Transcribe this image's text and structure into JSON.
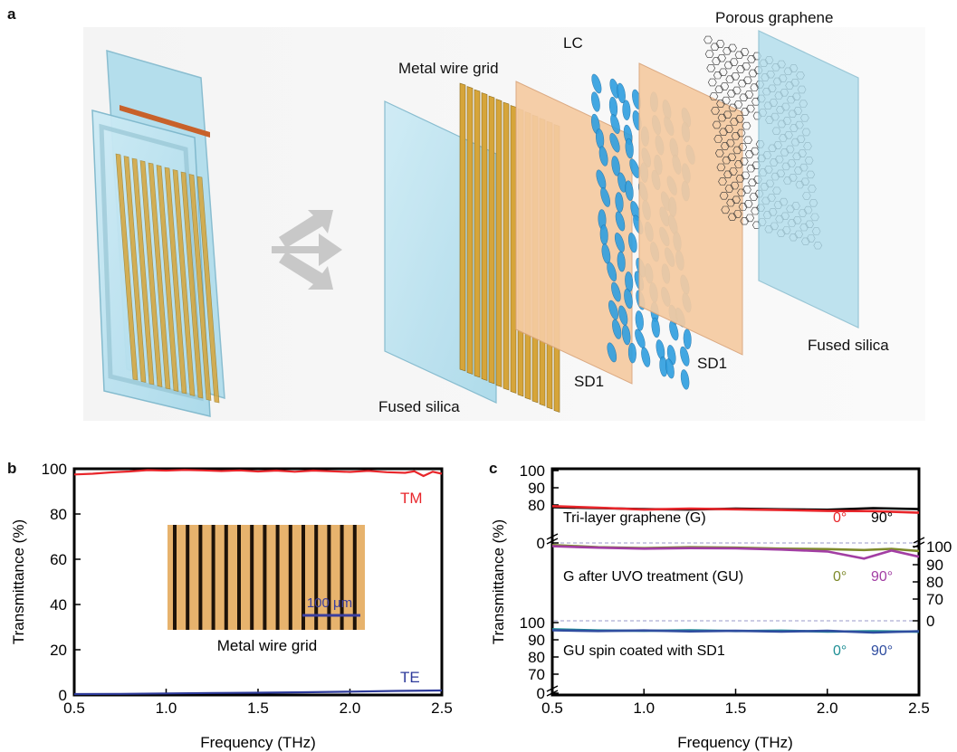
{
  "figure": {
    "panel_a": {
      "letter": "a",
      "labels": {
        "porous_graphene": "Porous graphene",
        "lc": "LC",
        "metal_wire_grid": "Metal wire grid",
        "fused_silica_left": "Fused silica",
        "fused_silica_right": "Fused silica",
        "sd1_left": "SD1",
        "sd1_right": "SD1"
      }
    },
    "panel_b": {
      "letter": "b",
      "inset_caption": "Metal wire grid",
      "scale_bar_label": "100 μm"
    },
    "panel_c": {
      "letter": "c",
      "annotations": {
        "row1_label": "Tri-layer graphene (G)",
        "row1_angle0": "0°",
        "row1_angle90": "90°",
        "row2_label": "G after UVO treatment (GU)",
        "row2_angle0": "0°",
        "row2_angle90": "90°",
        "row3_label": "GU spin coated with SD1",
        "row3_angle0": "0°",
        "row3_angle90": "90°"
      }
    },
    "colors": {
      "tm": "#e8262b",
      "te": "#2e3b9b",
      "g0": "#e8262b",
      "g90": "#000000",
      "gu0": "#7e8a2b",
      "gu90": "#a23ea3",
      "sd0": "#1f8f95",
      "sd90": "#2f4da0",
      "glass": "#b9e2ef",
      "wire": "#d6a53a",
      "sd1": "#f4c9a0",
      "lc": "#2f9fe0"
    }
  },
  "chart_data": [
    {
      "type": "line",
      "panel": "b",
      "xlabel": "Frequency (THz)",
      "ylabel": "Transmittance (%)",
      "xlim": [
        0.5,
        2.5
      ],
      "ylim": [
        0,
        100
      ],
      "xticks": [
        0.5,
        1.0,
        1.5,
        2.0,
        2.5
      ],
      "yticks": [
        0,
        20,
        40,
        60,
        80,
        100
      ],
      "series": [
        {
          "name": "TM",
          "x": [
            0.5,
            0.6,
            0.7,
            0.8,
            0.9,
            1.0,
            1.1,
            1.2,
            1.3,
            1.4,
            1.5,
            1.6,
            1.7,
            1.8,
            1.9,
            2.0,
            2.1,
            2.2,
            2.3,
            2.35,
            2.4,
            2.45,
            2.5
          ],
          "y": [
            97.5,
            97.8,
            98.4,
            98.8,
            99.4,
            99.2,
            99.5,
            99.3,
            99.0,
            99.3,
            98.8,
            99.2,
            98.7,
            99.2,
            98.9,
            98.6,
            99.1,
            98.5,
            98.2,
            98.9,
            96.8,
            98.7,
            97.8
          ]
        },
        {
          "name": "TE",
          "x": [
            0.5,
            0.75,
            1.0,
            1.25,
            1.5,
            1.75,
            2.0,
            2.25,
            2.5
          ],
          "y": [
            0.4,
            0.5,
            0.7,
            0.9,
            1.0,
            1.2,
            1.5,
            1.8,
            2.0
          ]
        }
      ]
    },
    {
      "type": "line",
      "panel": "c",
      "xlabel": "Frequency (THz)",
      "ylabel": "Transmittance (%)",
      "xlim": [
        0.5,
        2.5
      ],
      "xticks": [
        0.5,
        1.0,
        1.5,
        2.0,
        2.5
      ],
      "subplots": [
        {
          "name": "Tri-layer graphene (G)",
          "axis_side": "left",
          "ylim": [
            0,
            100
          ],
          "yticks": [
            0,
            80,
            90,
            100
          ],
          "series": [
            {
              "angle": "0°",
              "x": [
                0.5,
                0.75,
                1.0,
                1.25,
                1.5,
                1.75,
                2.0,
                2.25,
                2.5
              ],
              "y": [
                84.5,
                83.8,
                83.0,
                83.4,
                83.1,
                82.8,
                82.4,
                82.3,
                81.6
              ]
            },
            {
              "angle": "90°",
              "x": [
                0.5,
                0.75,
                1.0,
                1.25,
                1.5,
                1.75,
                2.0,
                2.25,
                2.5
              ],
              "y": [
                84.0,
                83.6,
                83.2,
                83.0,
                83.4,
                83.1,
                82.9,
                83.6,
                83.2
              ]
            }
          ]
        },
        {
          "name": "G after UVO treatment (GU)",
          "axis_side": "right",
          "ylim": [
            0,
            100
          ],
          "yticks": [
            0,
            70,
            80,
            90,
            100
          ],
          "series": [
            {
              "angle": "0°",
              "x": [
                0.5,
                0.75,
                1.0,
                1.25,
                1.5,
                1.75,
                2.0,
                2.2,
                2.35,
                2.5
              ],
              "y": [
                99.5,
                98.6,
                98.2,
                98.6,
                98.4,
                98.0,
                97.8,
                97.4,
                97.9,
                97.0
              ]
            },
            {
              "angle": "90°",
              "x": [
                0.5,
                0.75,
                1.0,
                1.25,
                1.5,
                1.75,
                2.0,
                2.2,
                2.35,
                2.5
              ],
              "y": [
                99.0,
                98.4,
                98.0,
                98.2,
                98.1,
                97.6,
                96.8,
                93.8,
                97.2,
                94.6
              ]
            }
          ]
        },
        {
          "name": "GU spin coated with SD1",
          "axis_side": "left",
          "ylim": [
            0,
            100
          ],
          "yticks": [
            0,
            70,
            80,
            90,
            100
          ],
          "series": [
            {
              "angle": "0°",
              "x": [
                0.5,
                0.75,
                1.0,
                1.25,
                1.5,
                1.75,
                2.0,
                2.25,
                2.5
              ],
              "y": [
                96.4,
                95.8,
                95.6,
                95.9,
                95.5,
                95.7,
                95.2,
                95.4,
                95.1
              ]
            },
            {
              "angle": "90°",
              "x": [
                0.5,
                0.75,
                1.0,
                1.25,
                1.5,
                1.75,
                2.0,
                2.25,
                2.5
              ],
              "y": [
                95.9,
                95.5,
                95.8,
                95.3,
                95.6,
                95.2,
                95.6,
                94.7,
                95.4
              ]
            }
          ]
        }
      ]
    }
  ]
}
